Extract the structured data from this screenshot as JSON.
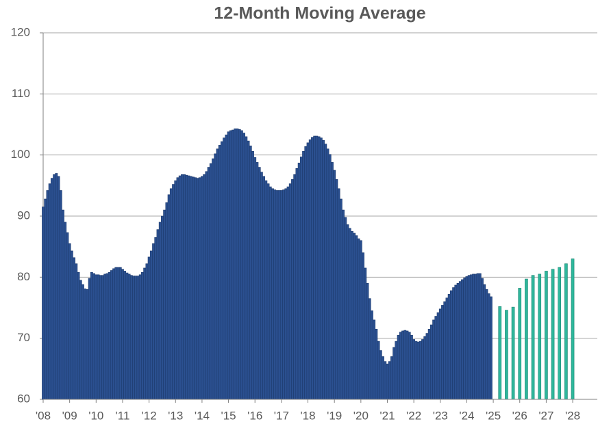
{
  "chart_data": {
    "type": "bar",
    "title": "12-Month Moving Average",
    "xlim": [
      2008,
      2028.93
    ],
    "ylim": [
      60,
      120
    ],
    "xticks": [
      {
        "value": 2008,
        "label": "'08"
      },
      {
        "value": 2009,
        "label": "'09"
      },
      {
        "value": 2010,
        "label": "'10"
      },
      {
        "value": 2011,
        "label": "'11"
      },
      {
        "value": 2012,
        "label": "'12"
      },
      {
        "value": 2013,
        "label": "'13"
      },
      {
        "value": 2014,
        "label": "'14"
      },
      {
        "value": 2015,
        "label": "'15"
      },
      {
        "value": 2016,
        "label": "'16"
      },
      {
        "value": 2017,
        "label": "'17"
      },
      {
        "value": 2018,
        "label": "'18"
      },
      {
        "value": 2019,
        "label": "'19"
      },
      {
        "value": 2020,
        "label": "'20"
      },
      {
        "value": 2021,
        "label": "'21"
      },
      {
        "value": 2022,
        "label": "'22"
      },
      {
        "value": 2023,
        "label": "'23"
      },
      {
        "value": 2024,
        "label": "'24"
      },
      {
        "value": 2025,
        "label": "'25"
      },
      {
        "value": 2026,
        "label": "'26"
      },
      {
        "value": 2027,
        "label": "'27"
      },
      {
        "value": 2028,
        "label": "'28"
      }
    ],
    "yticks": [
      60,
      70,
      80,
      90,
      100,
      110,
      120
    ],
    "grid": true,
    "series": [
      {
        "color": "#2b5090",
        "edgecolor": "#1d3a6c",
        "x": [
          2008,
          2008.083,
          2008.167,
          2008.25,
          2008.333,
          2008.417,
          2008.5,
          2008.583,
          2008.667,
          2008.75,
          2008.833,
          2008.917,
          2009,
          2009.083,
          2009.167,
          2009.25,
          2009.333,
          2009.417,
          2009.5,
          2009.583,
          2009.667,
          2009.75,
          2009.833,
          2009.917,
          2010,
          2010.083,
          2010.167,
          2010.25,
          2010.333,
          2010.417,
          2010.5,
          2010.583,
          2010.667,
          2010.75,
          2010.833,
          2010.917,
          2011,
          2011.083,
          2011.167,
          2011.25,
          2011.333,
          2011.417,
          2011.5,
          2011.583,
          2011.667,
          2011.75,
          2011.833,
          2011.917,
          2012,
          2012.083,
          2012.167,
          2012.25,
          2012.333,
          2012.417,
          2012.5,
          2012.583,
          2012.667,
          2012.75,
          2012.833,
          2012.917,
          2013,
          2013.083,
          2013.167,
          2013.25,
          2013.333,
          2013.417,
          2013.5,
          2013.583,
          2013.667,
          2013.75,
          2013.833,
          2013.917,
          2014,
          2014.083,
          2014.167,
          2014.25,
          2014.333,
          2014.417,
          2014.5,
          2014.583,
          2014.667,
          2014.75,
          2014.833,
          2014.917,
          2015,
          2015.083,
          2015.167,
          2015.25,
          2015.333,
          2015.417,
          2015.5,
          2015.583,
          2015.667,
          2015.75,
          2015.833,
          2015.917,
          2016,
          2016.083,
          2016.167,
          2016.25,
          2016.333,
          2016.417,
          2016.5,
          2016.583,
          2016.667,
          2016.75,
          2016.833,
          2016.917,
          2017,
          2017.083,
          2017.167,
          2017.25,
          2017.333,
          2017.417,
          2017.5,
          2017.583,
          2017.667,
          2017.75,
          2017.833,
          2017.917,
          2018,
          2018.083,
          2018.167,
          2018.25,
          2018.333,
          2018.417,
          2018.5,
          2018.583,
          2018.667,
          2018.75,
          2018.833,
          2018.917,
          2019,
          2019.083,
          2019.167,
          2019.25,
          2019.333,
          2019.417,
          2019.5,
          2019.583,
          2019.667,
          2019.75,
          2019.833,
          2019.917,
          2020,
          2020.083,
          2020.167,
          2020.25,
          2020.333,
          2020.417,
          2020.5,
          2020.583,
          2020.667,
          2020.75,
          2020.833,
          2020.917,
          2021,
          2021.083,
          2021.167,
          2021.25,
          2021.333,
          2021.417,
          2021.5,
          2021.583,
          2021.667,
          2021.75,
          2021.833,
          2021.917,
          2022,
          2022.083,
          2022.167,
          2022.25,
          2022.333,
          2022.417,
          2022.5,
          2022.583,
          2022.667,
          2022.75,
          2022.833,
          2022.917,
          2023,
          2023.083,
          2023.167,
          2023.25,
          2023.333,
          2023.417,
          2023.5,
          2023.583,
          2023.667,
          2023.75,
          2023.833,
          2023.917,
          2024,
          2024.083,
          2024.167,
          2024.25,
          2024.333,
          2024.417,
          2024.5,
          2024.583,
          2024.667,
          2024.75,
          2024.833,
          2024.917
        ],
        "values": [
          91.5,
          92.8,
          94.2,
          95.3,
          96.2,
          96.8,
          97,
          96.5,
          94.2,
          91,
          89,
          87.3,
          85.5,
          84.3,
          83.2,
          82.2,
          80.8,
          79.5,
          78.8,
          78.1,
          78,
          79.8,
          80.8,
          80.6,
          80.4,
          80.4,
          80.3,
          80.3,
          80.5,
          80.6,
          80.8,
          81.1,
          81.4,
          81.6,
          81.6,
          81.6,
          81.3,
          81,
          80.7,
          80.5,
          80.3,
          80.2,
          80.2,
          80.2,
          80.4,
          80.8,
          81.5,
          82.2,
          83.3,
          84.3,
          85.5,
          86.5,
          87.8,
          89,
          90,
          91,
          92.2,
          93.5,
          94.5,
          95.2,
          95.8,
          96.3,
          96.6,
          96.8,
          96.8,
          96.7,
          96.6,
          96.5,
          96.4,
          96.3,
          96.2,
          96.3,
          96.5,
          96.8,
          97.3,
          98,
          98.6,
          99.4,
          100.2,
          101,
          101.6,
          102.2,
          102.8,
          103.3,
          103.8,
          104,
          104.1,
          104.3,
          104.3,
          104.2,
          104,
          103.6,
          103,
          102.3,
          101.5,
          100.6,
          99.6,
          98.8,
          98,
          97.2,
          96.5,
          95.8,
          95.3,
          94.8,
          94.5,
          94.3,
          94.2,
          94.2,
          94.2,
          94.3,
          94.5,
          94.8,
          95.3,
          96,
          96.8,
          97.8,
          98.7,
          99.7,
          100.6,
          101.4,
          102,
          102.5,
          102.9,
          103.1,
          103.1,
          103,
          102.8,
          102.4,
          101.8,
          101,
          100.1,
          98.8,
          97.5,
          96,
          94.5,
          92.8,
          91,
          89.8,
          88.6,
          88,
          87.5,
          87.2,
          86.8,
          86.3,
          86,
          84,
          81.5,
          79,
          76.5,
          74.5,
          73,
          71.5,
          69.5,
          68,
          67,
          66.2,
          65.8,
          66.2,
          67,
          68.5,
          69.5,
          70.5,
          71,
          71.2,
          71.3,
          71.2,
          71,
          70.5,
          69.8,
          69.5,
          69.4,
          69.5,
          69.8,
          70.3,
          70.8,
          71.5,
          72.2,
          73,
          73.6,
          74.2,
          74.8,
          75.4,
          76,
          76.6,
          77.2,
          77.8,
          78.3,
          78.7,
          79,
          79.3,
          79.6,
          79.9,
          80.1,
          80.3,
          80.4,
          80.5,
          80.5,
          80.6,
          80.6,
          79.8,
          78.8,
          78,
          77.3,
          76.8
        ]
      },
      {
        "color": "#2fb79c",
        "edgecolor": "#1b8370",
        "x": [
          2025.25,
          2025.5,
          2025.75,
          2026,
          2026.25,
          2026.5,
          2026.75,
          2027,
          2027.25,
          2027.5,
          2027.75,
          2028
        ],
        "values": [
          75.2,
          74.6,
          75.1,
          78.2,
          79.7,
          80.3,
          80.5,
          81.0,
          81.3,
          81.6,
          82.2,
          83.0
        ]
      }
    ]
  }
}
